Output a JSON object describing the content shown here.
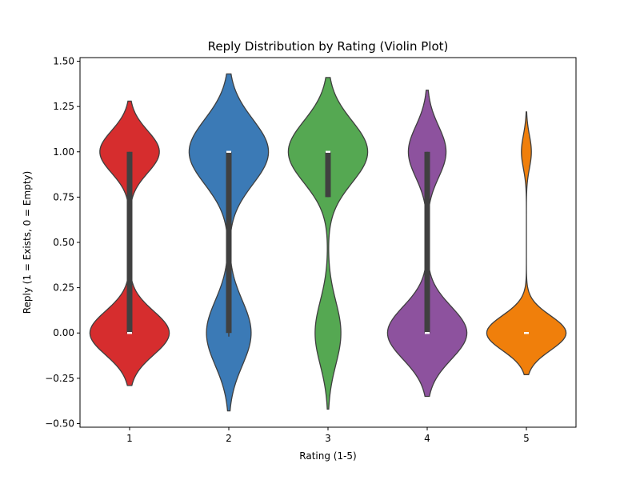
{
  "chart_data": {
    "type": "violin",
    "title": "Reply Distribution by Rating (Violin Plot)",
    "xlabel": "Rating (1-5)",
    "ylabel": "Reply (1 = Exists, 0 = Empty)",
    "ylim": [
      -0.52,
      1.52
    ],
    "yticks": [
      "1.50",
      "1.25",
      "1.00",
      "0.75",
      "0.50",
      "0.25",
      "0.00",
      "−0.25",
      "−0.50"
    ],
    "ytick_values": [
      1.5,
      1.25,
      1.0,
      0.75,
      0.5,
      0.25,
      0.0,
      -0.25,
      -0.5
    ],
    "categories": [
      "1",
      "2",
      "3",
      "4",
      "5"
    ],
    "grid": false,
    "legend": "none",
    "violins": [
      {
        "category": "1",
        "color": "#d62d2e",
        "min": -0.29,
        "max": 1.28,
        "width_top": 0.6,
        "width_bottom": 0.8,
        "q1": 0.0,
        "median": 0.0,
        "q3": 1.0,
        "whisker_low": 0.0,
        "whisker_high": 1.0
      },
      {
        "category": "2",
        "color": "#3b7ab6",
        "min": -0.43,
        "max": 1.43,
        "width_top": 0.8,
        "width_bottom": 0.45,
        "q1": 0.0,
        "median": 1.0,
        "q3": 1.0,
        "whisker_low": -0.02,
        "whisker_high": 1.0
      },
      {
        "category": "3",
        "color": "#55a852",
        "min": -0.42,
        "max": 1.41,
        "width_top": 0.8,
        "width_bottom": 0.26,
        "q1": 0.75,
        "median": 1.0,
        "q3": 1.0,
        "whisker_low": 0.75,
        "whisker_high": 1.0
      },
      {
        "category": "4",
        "color": "#8d529e",
        "min": -0.35,
        "max": 1.34,
        "width_top": 0.38,
        "width_bottom": 0.8,
        "q1": 0.0,
        "median": 0.0,
        "q3": 1.0,
        "whisker_low": 0.0,
        "whisker_high": 1.0
      },
      {
        "category": "5",
        "color": "#f07f0b",
        "min": -0.23,
        "max": 1.22,
        "width_top": 0.1,
        "width_bottom": 0.8,
        "q1": 0.0,
        "median": 0.0,
        "q3": 0.0,
        "whisker_low": 0.0,
        "whisker_high": 0.0
      }
    ],
    "colors": {
      "axis": "#000000",
      "outline": "#3f3f3f",
      "box": "#404040",
      "median": "#ffffff"
    }
  }
}
